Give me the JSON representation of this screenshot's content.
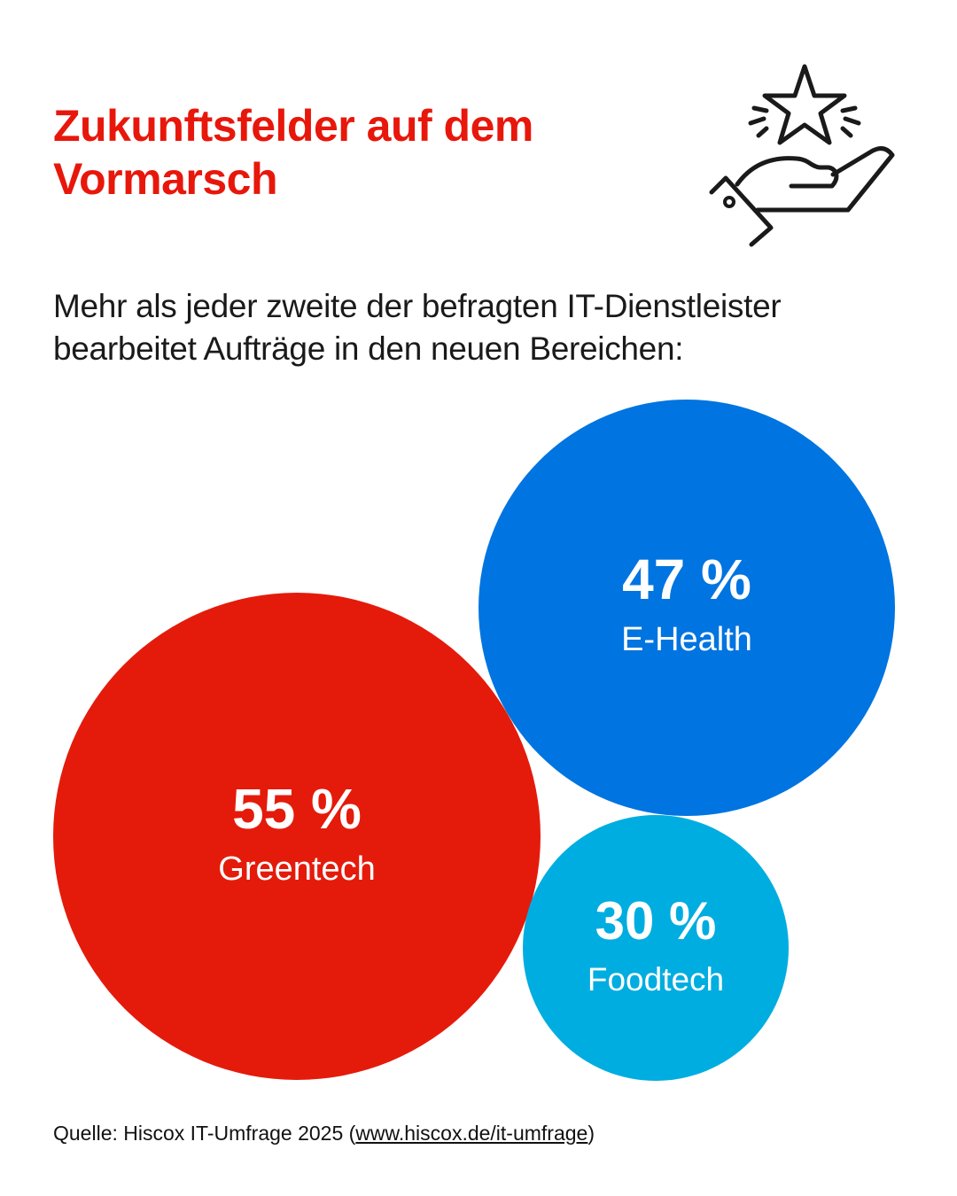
{
  "header": {
    "title": "Zukunftsfelder auf dem Vormarsch",
    "subtitle_line1": "Mehr als jeder zweite der befragten IT-Dienstleister",
    "subtitle_line2": "bearbeitet Aufträge in den neuen Bereichen:",
    "icon": "hand-holding-star-icon"
  },
  "chart_data": {
    "type": "bubble",
    "title": "Zukunftsfelder auf dem Vormarsch",
    "unit": "%",
    "categories": [
      "Greentech",
      "E-Health",
      "Foodtech"
    ],
    "values": [
      55,
      47,
      30
    ],
    "labels": [
      "55 %",
      "47 %",
      "30 %"
    ],
    "colors": [
      "#e41b0b",
      "#0074e0",
      "#00ade0"
    ]
  },
  "footer": {
    "source_prefix": "Quelle: Hiscox IT-Umfrage 2025 (",
    "source_link": "www.hiscox.de/it-umfrage",
    "source_suffix": ")"
  }
}
